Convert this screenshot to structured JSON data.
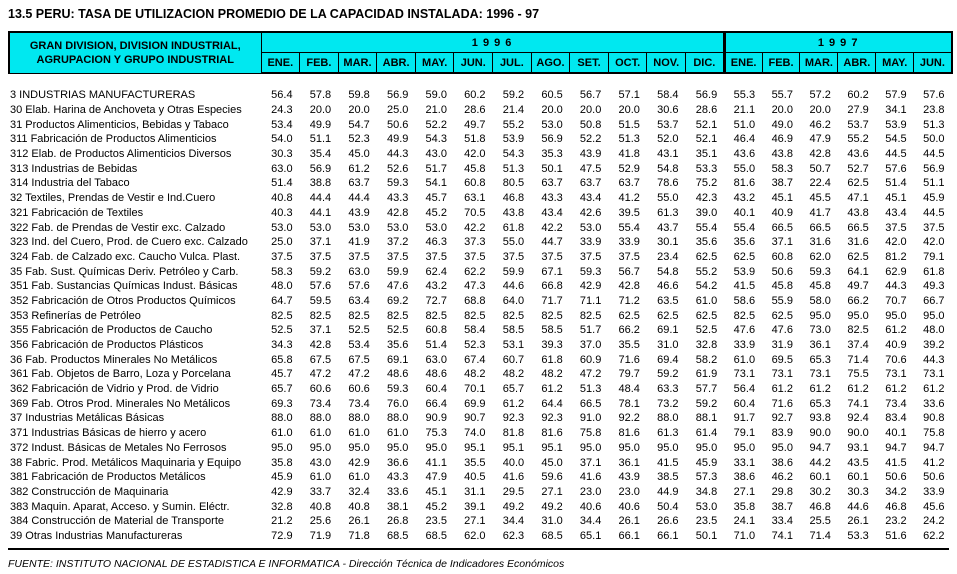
{
  "colors": {
    "header_bg": "#00E8F0",
    "border": "#000000",
    "text": "#000000",
    "page_bg": "#FFFFFF"
  },
  "title": "13.5  PERU: TASA DE UTILIZACION PROMEDIO DE LA CAPACIDAD INSTALADA: 1996 - 97",
  "table": {
    "row_header_line1": "GRAN DIVISION, DIVISION INDUSTRIAL,",
    "row_header_line2": "AGRUPACION Y GRUPO INDUSTRIAL",
    "year_groups": [
      {
        "year": "1 9 9 6",
        "months": [
          "ENE.",
          "FEB.",
          "MAR.",
          "ABR.",
          "MAY.",
          "JUN.",
          "JUL.",
          "AGO.",
          "SET.",
          "OCT.",
          "NOV.",
          "DIC."
        ]
      },
      {
        "year": "1 9 9 7",
        "months": [
          "ENE.",
          "FEB.",
          "MAR.",
          "ABR.",
          "MAY.",
          "JUN."
        ]
      }
    ],
    "rows": [
      {
        "label": "3 INDUSTRIAS MANUFACTURERAS",
        "y1996": [
          "56.4",
          "57.8",
          "59.8",
          "56.9",
          "59.0",
          "60.2",
          "59.2",
          "60.5",
          "56.7",
          "57.1",
          "58.4",
          "56.9"
        ],
        "y1997": [
          "55.3",
          "55.7",
          "57.2",
          "60.2",
          "57.9",
          "57.6"
        ]
      },
      {
        "label": "30 Elab. Harina de Anchoveta y Otras Especies",
        "y1996": [
          "24.3",
          "20.0",
          "20.0",
          "25.0",
          "21.0",
          "28.6",
          "21.4",
          "20.0",
          "20.0",
          "20.0",
          "30.6",
          "28.6"
        ],
        "y1997": [
          "21.1",
          "20.0",
          "20.0",
          "27.9",
          "34.1",
          "23.8"
        ]
      },
      {
        "label": "31 Productos Alimenticios, Bebidas y Tabaco",
        "y1996": [
          "53.4",
          "49.9",
          "54.7",
          "50.6",
          "52.2",
          "49.7",
          "55.2",
          "53.0",
          "50.8",
          "51.5",
          "53.7",
          "52.1"
        ],
        "y1997": [
          "51.0",
          "49.0",
          "46.2",
          "53.7",
          "53.9",
          "51.3"
        ]
      },
      {
        "label": "311 Fabricación de Productos Alimenticios",
        "y1996": [
          "54.0",
          "51.1",
          "52.3",
          "49.9",
          "54.3",
          "51.8",
          "53.9",
          "56.9",
          "52.2",
          "51.3",
          "52.0",
          "52.1"
        ],
        "y1997": [
          "46.4",
          "46.9",
          "47.9",
          "55.2",
          "54.5",
          "50.0"
        ]
      },
      {
        "label": "312 Elab. de Productos Alimenticios Diversos",
        "y1996": [
          "30.3",
          "35.4",
          "45.0",
          "44.3",
          "43.0",
          "42.0",
          "54.3",
          "35.3",
          "43.9",
          "41.8",
          "43.1",
          "35.1"
        ],
        "y1997": [
          "43.6",
          "43.8",
          "42.8",
          "43.6",
          "44.5",
          "44.5"
        ]
      },
      {
        "label": "313 Industrias de Bebidas",
        "y1996": [
          "63.0",
          "56.9",
          "61.2",
          "52.6",
          "51.7",
          "45.8",
          "51.3",
          "50.1",
          "47.5",
          "52.9",
          "54.8",
          "53.3"
        ],
        "y1997": [
          "55.0",
          "58.3",
          "50.7",
          "52.7",
          "57.6",
          "56.9"
        ]
      },
      {
        "label": "314 Industria del Tabaco",
        "y1996": [
          "51.4",
          "38.8",
          "63.7",
          "59.3",
          "54.1",
          "60.8",
          "80.5",
          "63.7",
          "63.7",
          "63.7",
          "78.6",
          "75.2"
        ],
        "y1997": [
          "81.6",
          "38.7",
          "22.4",
          "62.5",
          "51.4",
          "51.1"
        ]
      },
      {
        "label": "32 Textiles, Prendas de Vestir e Ind.Cuero",
        "y1996": [
          "40.8",
          "44.4",
          "44.4",
          "43.3",
          "45.7",
          "63.1",
          "46.8",
          "43.3",
          "43.4",
          "41.2",
          "55.0",
          "42.3"
        ],
        "y1997": [
          "43.2",
          "45.1",
          "45.5",
          "47.1",
          "45.1",
          "45.9"
        ]
      },
      {
        "label": "321 Fabricación de Textiles",
        "y1996": [
          "40.3",
          "44.1",
          "43.9",
          "42.8",
          "45.2",
          "70.5",
          "43.8",
          "43.4",
          "42.6",
          "39.5",
          "61.3",
          "39.0"
        ],
        "y1997": [
          "40.1",
          "40.9",
          "41.7",
          "43.8",
          "43.4",
          "44.5"
        ]
      },
      {
        "label": "322 Fab. de Prendas de Vestir exc. Calzado",
        "y1996": [
          "53.0",
          "53.0",
          "53.0",
          "53.0",
          "53.0",
          "42.2",
          "61.8",
          "42.2",
          "53.0",
          "55.4",
          "43.7",
          "55.4"
        ],
        "y1997": [
          "55.4",
          "66.5",
          "66.5",
          "66.5",
          "37.5",
          "37.5"
        ]
      },
      {
        "label": "323 Ind. del Cuero, Prod. de Cuero exc. Calzado",
        "y1996": [
          "25.0",
          "37.1",
          "41.9",
          "37.2",
          "46.3",
          "37.3",
          "55.0",
          "44.7",
          "33.9",
          "33.9",
          "30.1",
          "35.6"
        ],
        "y1997": [
          "35.6",
          "37.1",
          "31.6",
          "31.6",
          "42.0",
          "42.0"
        ]
      },
      {
        "label": "324 Fab. de Calzado exc. Caucho Vulca. Plast.",
        "y1996": [
          "37.5",
          "37.5",
          "37.5",
          "37.5",
          "37.5",
          "37.5",
          "37.5",
          "37.5",
          "37.5",
          "37.5",
          "23.4",
          "62.5"
        ],
        "y1997": [
          "62.5",
          "60.8",
          "62.0",
          "62.5",
          "81.2",
          "79.1"
        ]
      },
      {
        "label": "35 Fab. Sust. Químicas Deriv. Petróleo y Carb.",
        "y1996": [
          "58.3",
          "59.2",
          "63.0",
          "59.9",
          "62.4",
          "62.2",
          "59.9",
          "67.1",
          "59.3",
          "56.7",
          "54.8",
          "55.2"
        ],
        "y1997": [
          "53.9",
          "50.6",
          "59.3",
          "64.1",
          "62.9",
          "61.8"
        ]
      },
      {
        "label": "351 Fab. Sustancias Químicas Indust. Básicas",
        "y1996": [
          "48.0",
          "57.6",
          "57.6",
          "47.6",
          "43.2",
          "47.3",
          "44.6",
          "66.8",
          "42.9",
          "42.8",
          "46.6",
          "54.2"
        ],
        "y1997": [
          "41.5",
          "45.8",
          "45.8",
          "49.7",
          "44.3",
          "49.3"
        ]
      },
      {
        "label": "352 Fabricación de Otros Productos Químicos",
        "y1996": [
          "64.7",
          "59.5",
          "63.4",
          "69.2",
          "72.7",
          "68.8",
          "64.0",
          "71.7",
          "71.1",
          "71.2",
          "63.5",
          "61.0"
        ],
        "y1997": [
          "58.6",
          "55.9",
          "58.0",
          "66.2",
          "70.7",
          "66.7"
        ]
      },
      {
        "label": "353 Refinerías de Petróleo",
        "y1996": [
          "82.5",
          "82.5",
          "82.5",
          "82.5",
          "82.5",
          "82.5",
          "82.5",
          "82.5",
          "82.5",
          "62.5",
          "62.5",
          "62.5"
        ],
        "y1997": [
          "82.5",
          "62.5",
          "95.0",
          "95.0",
          "95.0",
          "95.0"
        ]
      },
      {
        "label": "355 Fabricación de Productos de Caucho",
        "y1996": [
          "52.5",
          "37.1",
          "52.5",
          "52.5",
          "60.8",
          "58.4",
          "58.5",
          "58.5",
          "51.7",
          "66.2",
          "69.1",
          "52.5"
        ],
        "y1997": [
          "47.6",
          "47.6",
          "73.0",
          "82.5",
          "61.2",
          "48.0"
        ]
      },
      {
        "label": "356 Fabricación de Productos Plásticos",
        "y1996": [
          "34.3",
          "42.8",
          "53.4",
          "35.6",
          "51.4",
          "52.3",
          "53.1",
          "39.3",
          "37.0",
          "35.5",
          "31.0",
          "32.8"
        ],
        "y1997": [
          "33.9",
          "31.9",
          "36.1",
          "37.4",
          "40.9",
          "39.2"
        ]
      },
      {
        "label": "36 Fab. Productos Minerales No Metálicos",
        "y1996": [
          "65.8",
          "67.5",
          "67.5",
          "69.1",
          "63.0",
          "67.4",
          "60.7",
          "61.8",
          "60.9",
          "71.6",
          "69.4",
          "58.2"
        ],
        "y1997": [
          "61.0",
          "69.5",
          "65.3",
          "71.4",
          "70.6",
          "44.3"
        ]
      },
      {
        "label": "361 Fab. Objetos de Barro, Loza y Porcelana",
        "y1996": [
          "45.7",
          "47.2",
          "47.2",
          "48.6",
          "48.6",
          "48.2",
          "48.2",
          "48.2",
          "47.2",
          "79.7",
          "59.2",
          "61.9"
        ],
        "y1997": [
          "73.1",
          "73.1",
          "73.1",
          "75.5",
          "73.1",
          "73.1"
        ]
      },
      {
        "label": "362 Fabricación de Vidrio y Prod. de Vidrio",
        "y1996": [
          "65.7",
          "60.6",
          "60.6",
          "59.3",
          "60.4",
          "70.1",
          "65.7",
          "61.2",
          "51.3",
          "48.4",
          "63.3",
          "57.7"
        ],
        "y1997": [
          "56.4",
          "61.2",
          "61.2",
          "61.2",
          "61.2",
          "61.2"
        ]
      },
      {
        "label": "369 Fab. Otros Prod. Minerales No Metálicos",
        "y1996": [
          "69.3",
          "73.4",
          "73.4",
          "76.0",
          "66.4",
          "69.9",
          "61.2",
          "64.4",
          "66.5",
          "78.1",
          "73.2",
          "59.2"
        ],
        "y1997": [
          "60.4",
          "71.6",
          "65.3",
          "74.1",
          "73.4",
          "33.6"
        ]
      },
      {
        "label": "37 Industrias Metálicas Básicas",
        "y1996": [
          "88.0",
          "88.0",
          "88.0",
          "88.0",
          "90.9",
          "90.7",
          "92.3",
          "92.3",
          "91.0",
          "92.2",
          "88.0",
          "88.1"
        ],
        "y1997": [
          "91.7",
          "92.7",
          "93.8",
          "92.4",
          "83.4",
          "90.8"
        ]
      },
      {
        "label": "371 Industrias Básicas de hierro y acero",
        "y1996": [
          "61.0",
          "61.0",
          "61.0",
          "61.0",
          "75.3",
          "74.0",
          "81.8",
          "81.6",
          "75.8",
          "81.6",
          "61.3",
          "61.4"
        ],
        "y1997": [
          "79.1",
          "83.9",
          "90.0",
          "90.0",
          "40.1",
          "75.8"
        ]
      },
      {
        "label": "372 Indust. Básicas de Metales No Ferrosos",
        "y1996": [
          "95.0",
          "95.0",
          "95.0",
          "95.0",
          "95.0",
          "95.1",
          "95.1",
          "95.1",
          "95.0",
          "95.0",
          "95.0",
          "95.0"
        ],
        "y1997": [
          "95.0",
          "95.0",
          "94.7",
          "93.1",
          "94.7",
          "94.7"
        ]
      },
      {
        "label": "38 Fabric. Prod. Metálicos Maquinaria y Equipo",
        "y1996": [
          "35.8",
          "43.0",
          "42.9",
          "36.6",
          "41.1",
          "35.5",
          "40.0",
          "45.0",
          "37.1",
          "36.1",
          "41.5",
          "45.9"
        ],
        "y1997": [
          "33.1",
          "38.6",
          "44.2",
          "43.5",
          "41.5",
          "41.2"
        ]
      },
      {
        "label": "381 Fabricación de Productos Metálicos",
        "y1996": [
          "45.9",
          "61.0",
          "61.0",
          "43.3",
          "47.9",
          "40.5",
          "41.6",
          "59.6",
          "41.6",
          "43.9",
          "38.5",
          "57.3"
        ],
        "y1997": [
          "38.6",
          "46.2",
          "60.1",
          "60.1",
          "50.6",
          "50.6"
        ]
      },
      {
        "label": "382 Construcción de Maquinaria",
        "y1996": [
          "42.9",
          "33.7",
          "32.4",
          "33.6",
          "45.1",
          "31.1",
          "29.5",
          "27.1",
          "23.0",
          "23.0",
          "44.9",
          "34.8"
        ],
        "y1997": [
          "27.1",
          "29.8",
          "30.2",
          "30.3",
          "34.2",
          "33.9"
        ]
      },
      {
        "label": "383 Maquin. Aparat, Acceso. y Sumin. Eléctr.",
        "y1996": [
          "32.8",
          "40.8",
          "40.8",
          "38.1",
          "45.2",
          "39.1",
          "49.2",
          "49.2",
          "40.6",
          "40.6",
          "50.4",
          "53.0"
        ],
        "y1997": [
          "35.8",
          "38.7",
          "46.8",
          "44.6",
          "46.8",
          "45.6"
        ]
      },
      {
        "label": "384 Construcción de Material de Transporte",
        "y1996": [
          "21.2",
          "25.6",
          "26.1",
          "26.8",
          "23.5",
          "27.1",
          "34.4",
          "31.0",
          "34.4",
          "26.1",
          "26.6",
          "23.5"
        ],
        "y1997": [
          "24.1",
          "33.4",
          "25.5",
          "26.1",
          "23.2",
          "24.2"
        ]
      },
      {
        "label": "39 Otras Industrias Manufactureras",
        "y1996": [
          "72.9",
          "71.9",
          "71.8",
          "68.5",
          "68.5",
          "62.0",
          "62.3",
          "68.5",
          "65.1",
          "66.1",
          "66.1",
          "50.1"
        ],
        "y1997": [
          "71.0",
          "74.1",
          "71.4",
          "53.3",
          "51.6",
          "62.2"
        ]
      }
    ]
  },
  "footer": "FUENTE: INSTITUTO NACIONAL DE ESTADISTICA E INFORMATICA - Dirección Técnica de Indicadores Económicos"
}
